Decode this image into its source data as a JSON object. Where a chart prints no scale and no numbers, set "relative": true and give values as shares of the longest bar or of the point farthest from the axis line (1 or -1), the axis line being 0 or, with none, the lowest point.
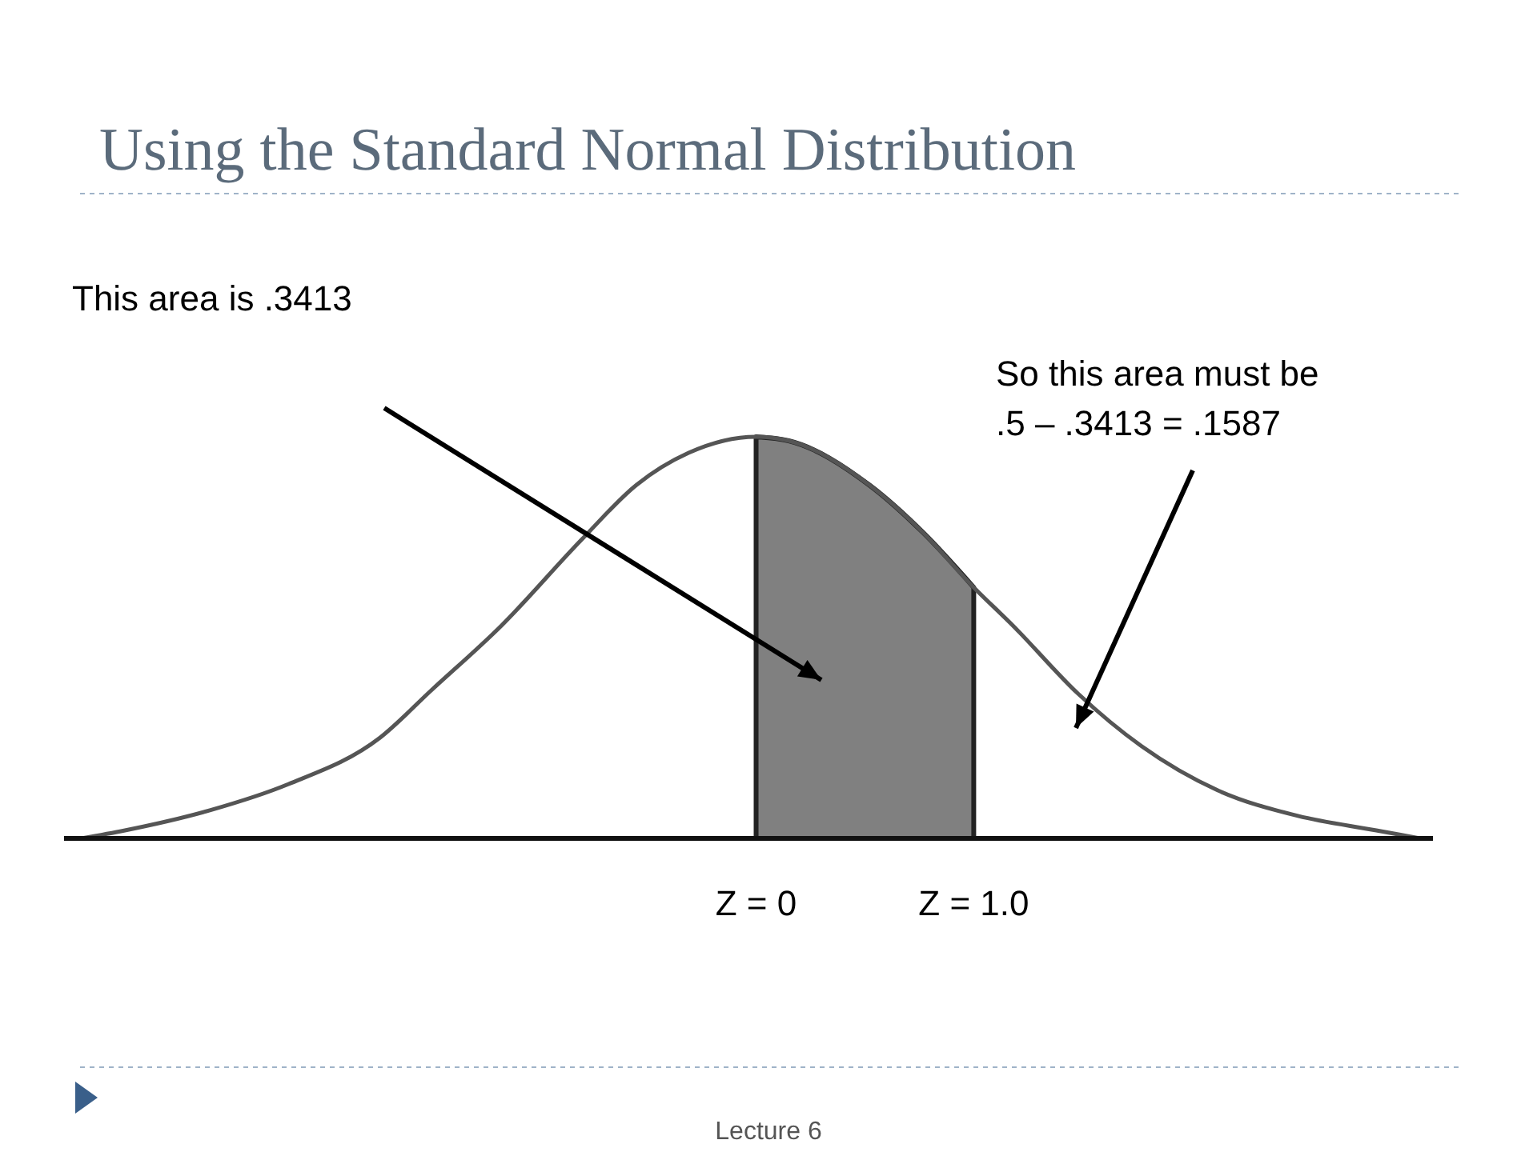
{
  "chart_data": {
    "type": "line",
    "title": "Using the Standard Normal Distribution",
    "relative": true,
    "xlim": [
      -3.18,
      3.11
    ],
    "xticks": [
      {
        "value": 0,
        "label": "Z = 0"
      },
      {
        "value": 1,
        "label": "Z = 1.0"
      }
    ],
    "series": [
      {
        "color": "#555555",
        "x": [
          -3.1,
          -2.9,
          -2.51,
          -2.15,
          -1.73,
          -1.49,
          -1.17,
          -0.8,
          -0.55,
          -0.31,
          0,
          0.15,
          0.52,
          0.77,
          1,
          1.18,
          1.48,
          1.77,
          2.12,
          2.49,
          2.85,
          3.05
        ],
        "values": [
          0,
          0.02,
          0.07,
          0.135,
          0.25,
          0.37,
          0.53,
          0.745,
          0.88,
          0.96,
          1,
          0.99,
          0.88,
          0.76,
          0.625,
          0.53,
          0.36,
          0.23,
          0.12,
          0.056,
          0.02,
          0
        ]
      },
      {
        "type": "area",
        "color": "#808080",
        "x": [
          0,
          0.15,
          0.52,
          0.77,
          1
        ],
        "values": [
          1,
          0.99,
          0.88,
          0.76,
          0.625
        ]
      }
    ],
    "annotations": [
      "This area is .3413",
      "So this area must be\n.5 – .3413 = .1587",
      "Lecture 6"
    ],
    "grid": false
  }
}
